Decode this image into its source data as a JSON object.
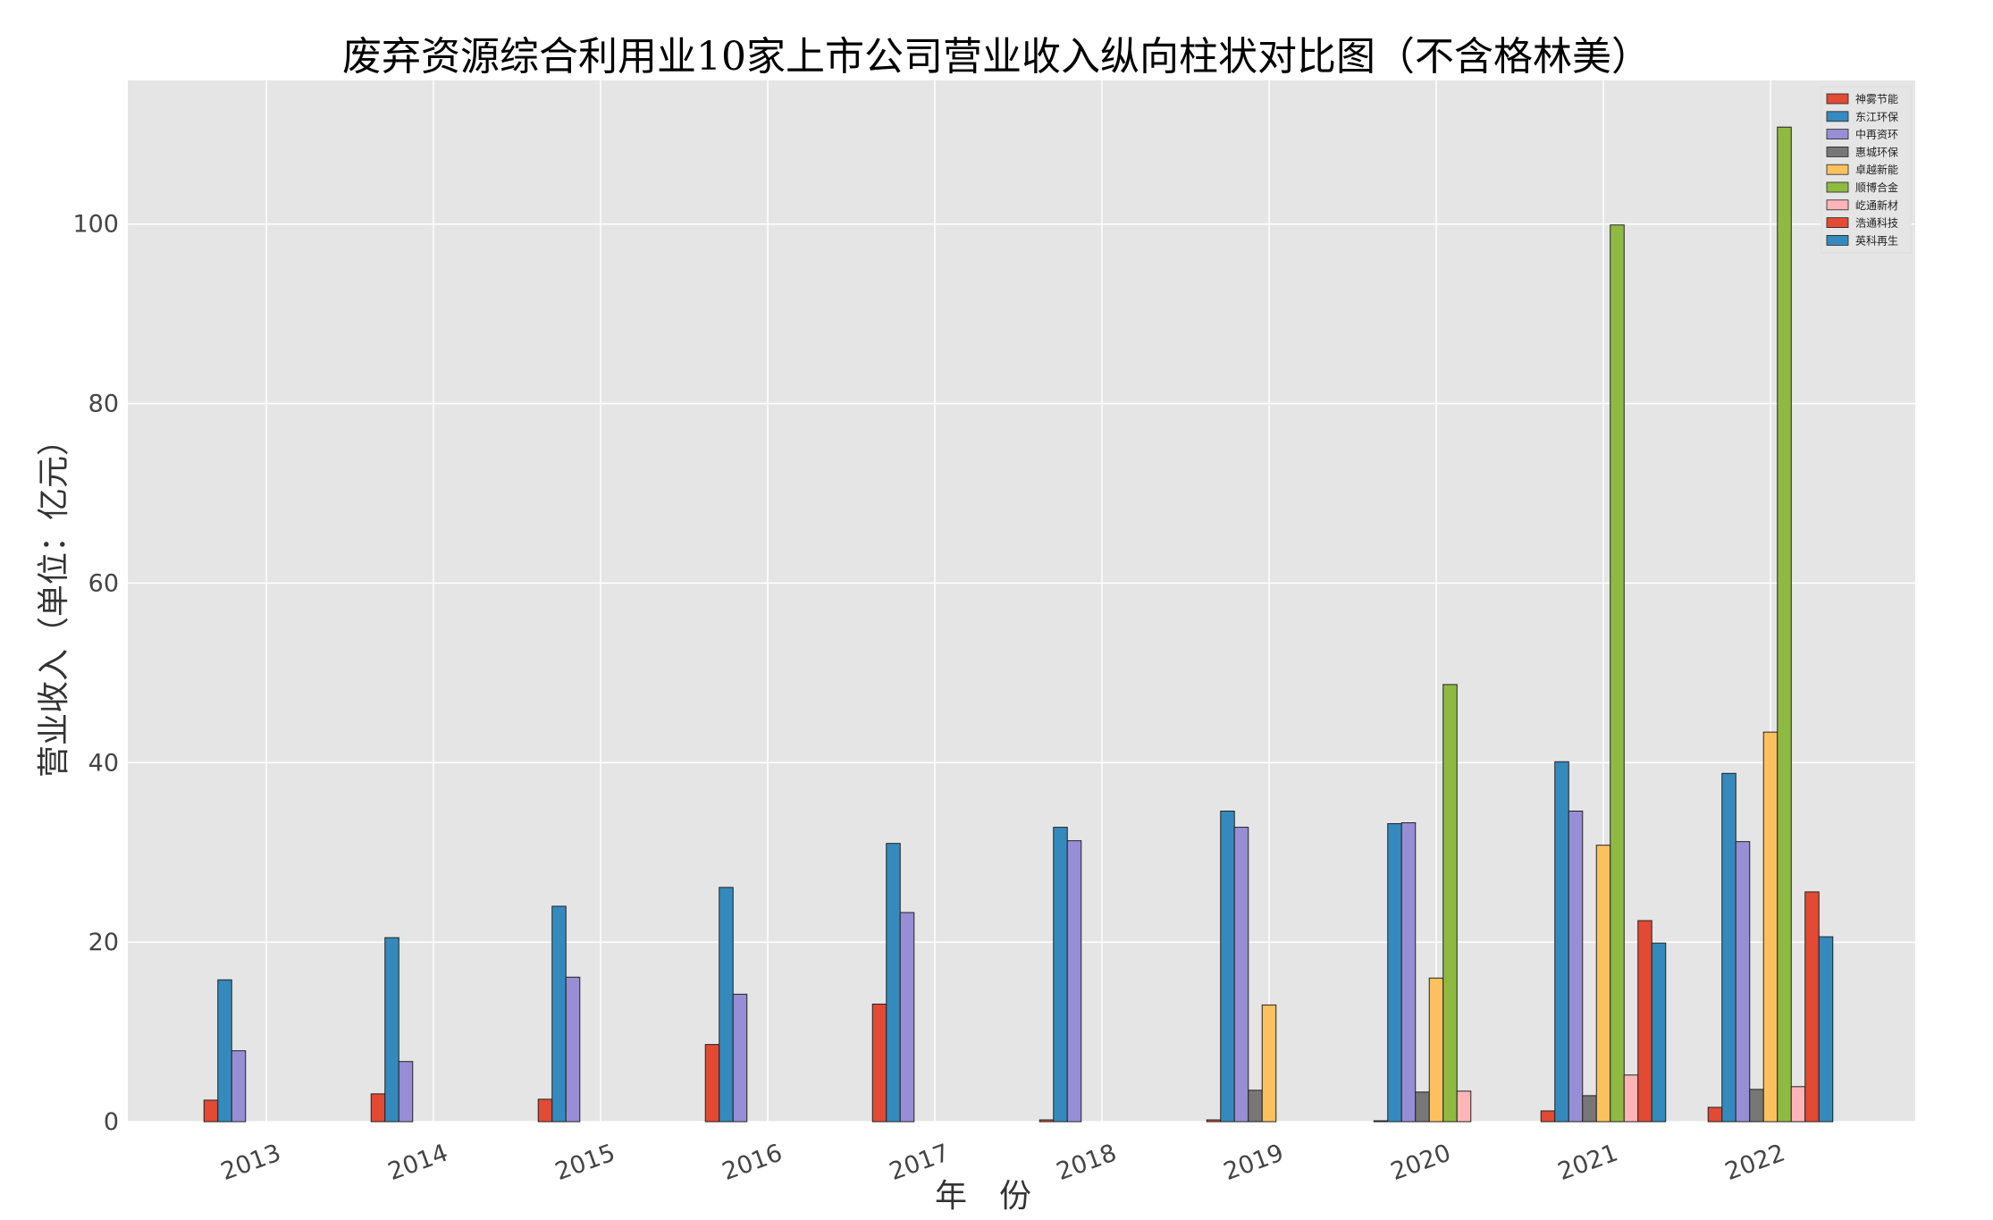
{
  "chart_data": {
    "type": "bar",
    "title": "废弃资源综合利用业10家上市公司营业收入纵向柱状对比图（不含格林美）",
    "xlabel": "年　份",
    "ylabel": "营业收入（单位：亿元）",
    "ylim": [
      0,
      116
    ],
    "yticks": [
      0,
      20,
      40,
      60,
      80,
      100
    ],
    "grid": true,
    "legend_position": "top-right",
    "categories": [
      "2013",
      "2014",
      "2015",
      "2016",
      "2017",
      "2018",
      "2019",
      "2020",
      "2021",
      "2022"
    ],
    "series": [
      {
        "name": "神雾节能",
        "color": "#E24A33",
        "values": [
          2.4,
          3.1,
          2.5,
          8.6,
          13.1,
          0.2,
          0.2,
          0.1,
          1.2,
          1.6
        ]
      },
      {
        "name": "东江环保",
        "color": "#348ABD",
        "values": [
          15.8,
          20.5,
          24.0,
          26.1,
          31.0,
          32.8,
          34.6,
          33.2,
          40.1,
          38.8
        ]
      },
      {
        "name": "中再资环",
        "color": "#988ED5",
        "values": [
          7.9,
          6.7,
          16.1,
          14.2,
          23.3,
          31.3,
          32.8,
          33.3,
          34.6,
          31.2
        ]
      },
      {
        "name": "惠城环保",
        "color": "#777777",
        "values": [
          0,
          0,
          0,
          0,
          0,
          0,
          3.5,
          3.3,
          2.9,
          3.6
        ]
      },
      {
        "name": "卓越新能",
        "color": "#FBC15E",
        "values": [
          0,
          0,
          0,
          0,
          0,
          0,
          13.0,
          16.0,
          30.8,
          43.4
        ]
      },
      {
        "name": "顺博合金",
        "color": "#8EBA42",
        "values": [
          0,
          0,
          0,
          0,
          0,
          0,
          0,
          48.7,
          99.9,
          110.8
        ]
      },
      {
        "name": "屹通新材",
        "color": "#FFB5B8",
        "values": [
          0,
          0,
          0,
          0,
          0,
          0,
          0,
          3.4,
          5.2,
          3.9
        ]
      },
      {
        "name": "浩通科技",
        "color": "#E24A33",
        "values": [
          0,
          0,
          0,
          0,
          0,
          0,
          0,
          0,
          22.4,
          25.6
        ]
      },
      {
        "name": "英科再生",
        "color": "#348ABD",
        "values": [
          0,
          0,
          0,
          0,
          0,
          0,
          0,
          0,
          19.9,
          20.6
        ]
      }
    ]
  }
}
